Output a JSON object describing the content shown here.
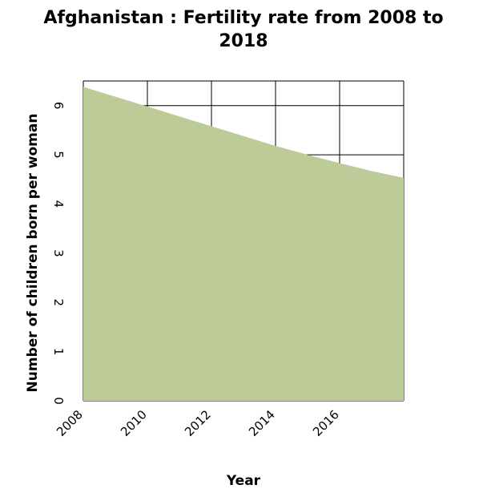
{
  "chart_data": {
    "type": "area",
    "title": "Afghanistan : Fertility rate from 2008 to\n2018",
    "xlabel": "Year",
    "ylabel": "Number of children born per woman",
    "x": [
      2008,
      2009,
      2010,
      2011,
      2012,
      2013,
      2014,
      2015,
      2016,
      2017,
      2018
    ],
    "series": [
      {
        "values": [
          6.38,
          6.18,
          5.98,
          5.78,
          5.58,
          5.38,
          5.18,
          5.0,
          4.83,
          4.67,
          4.53
        ]
      }
    ],
    "xlim": [
      2008,
      2018
    ],
    "ylim": [
      0,
      6.5
    ],
    "xticks": [
      "2008",
      "2010",
      "2012",
      "2014",
      "2016"
    ],
    "yticks": [
      "0",
      "1",
      "2",
      "3",
      "4",
      "5",
      "6"
    ],
    "grid": true,
    "fill_color": "#bccb97",
    "grid_color": "#000000"
  }
}
